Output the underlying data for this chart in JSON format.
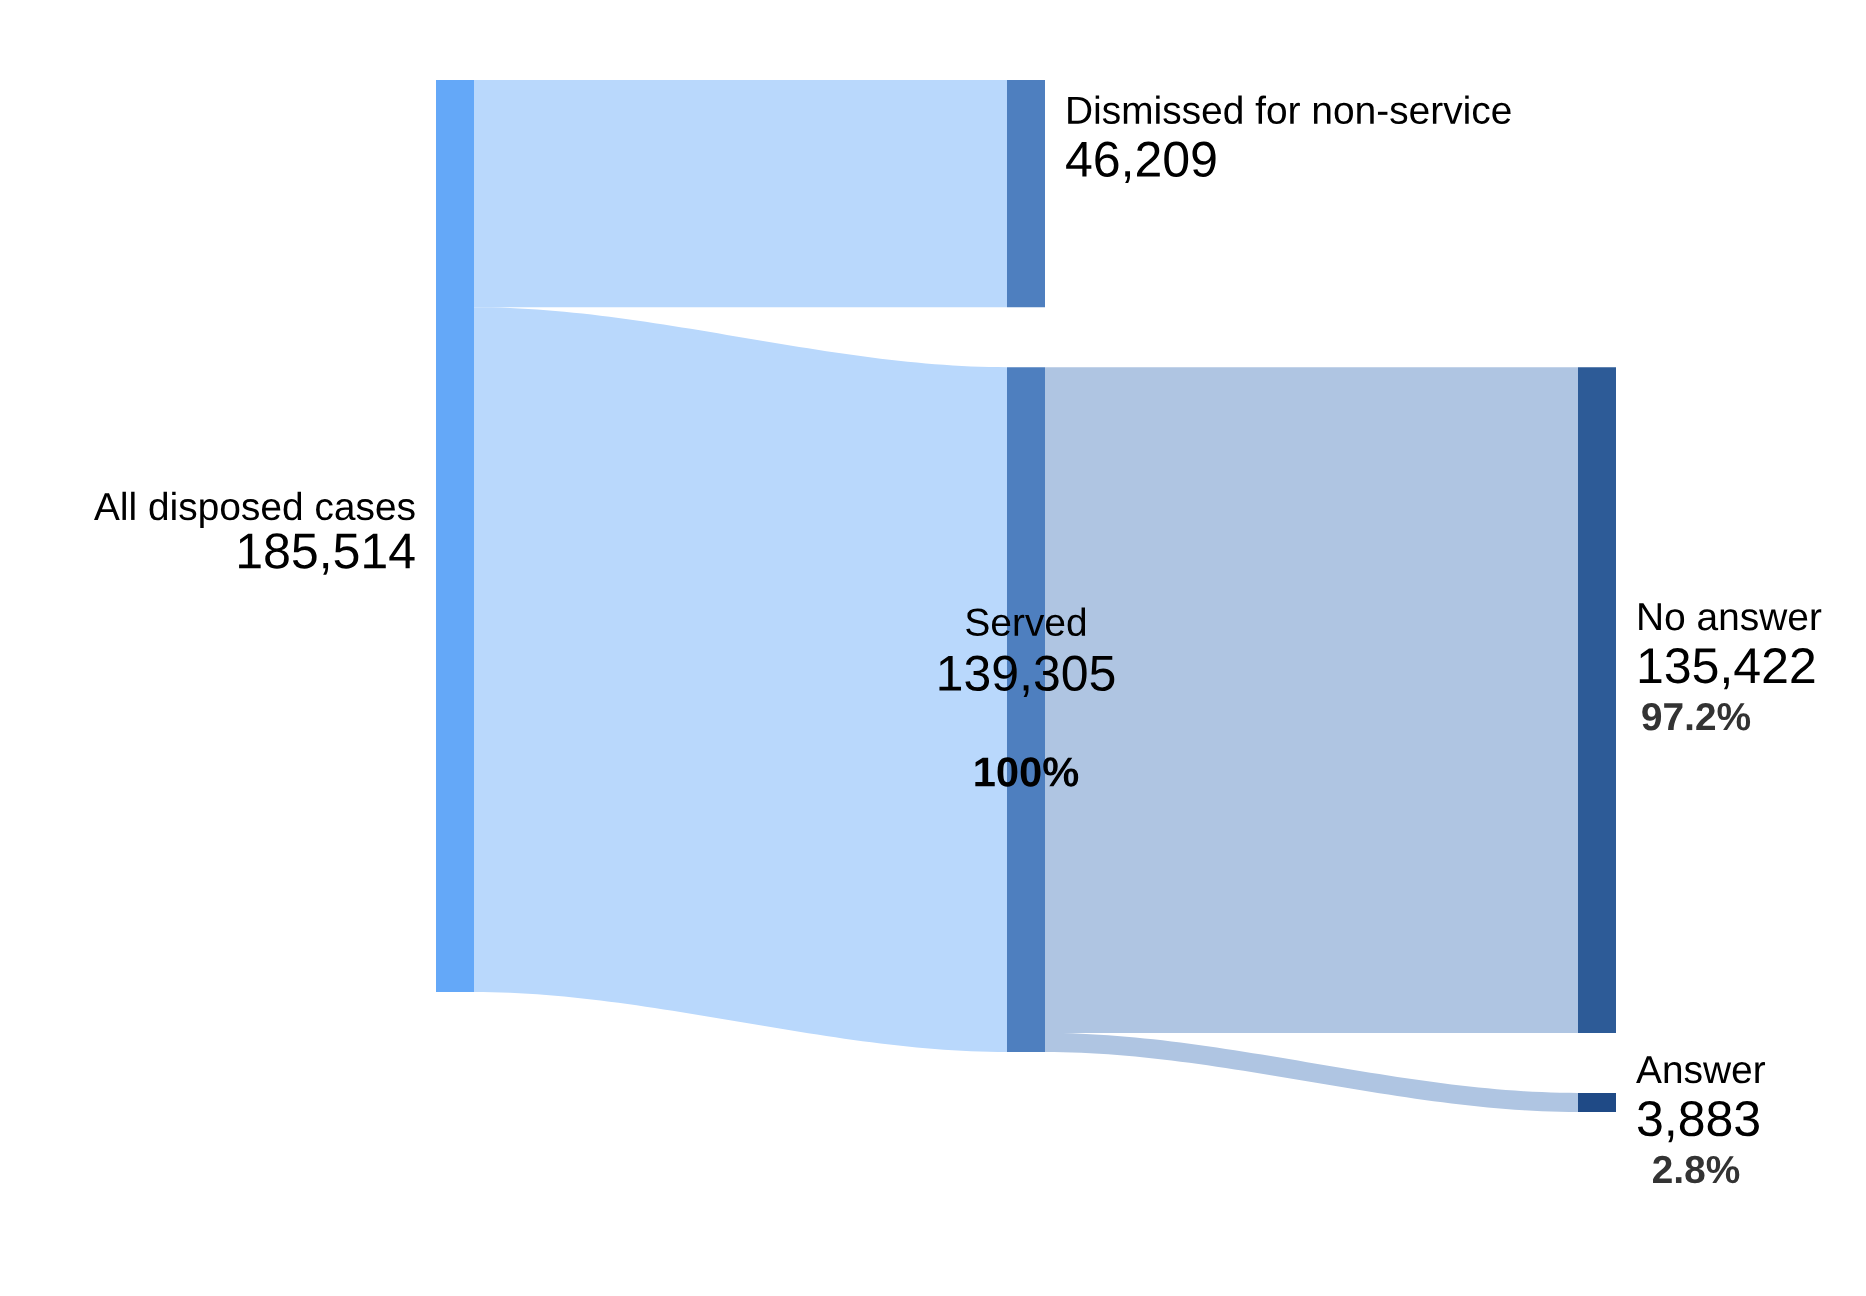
{
  "chart_data": {
    "type": "other",
    "categories": [
      "All disposed cases",
      "Dismissed for non-service",
      "Served",
      "No answer",
      "Answer"
    ],
    "values": [
      185514,
      46209,
      139305,
      135422,
      3883
    ],
    "value_labels": [
      "185,514",
      "46,209",
      "139,305",
      "135,422",
      "3,883"
    ],
    "colors": [
      "#64a8f8",
      "#4e7fbf",
      "#4e7fbf",
      "#2d5b97",
      "#1f4a86"
    ],
    "annotations": [
      {
        "text": "100%",
        "x": "Served"
      },
      {
        "text": "97.2%",
        "x": "No answer"
      },
      {
        "text": "2.8%",
        "x": "Answer"
      }
    ]
  }
}
